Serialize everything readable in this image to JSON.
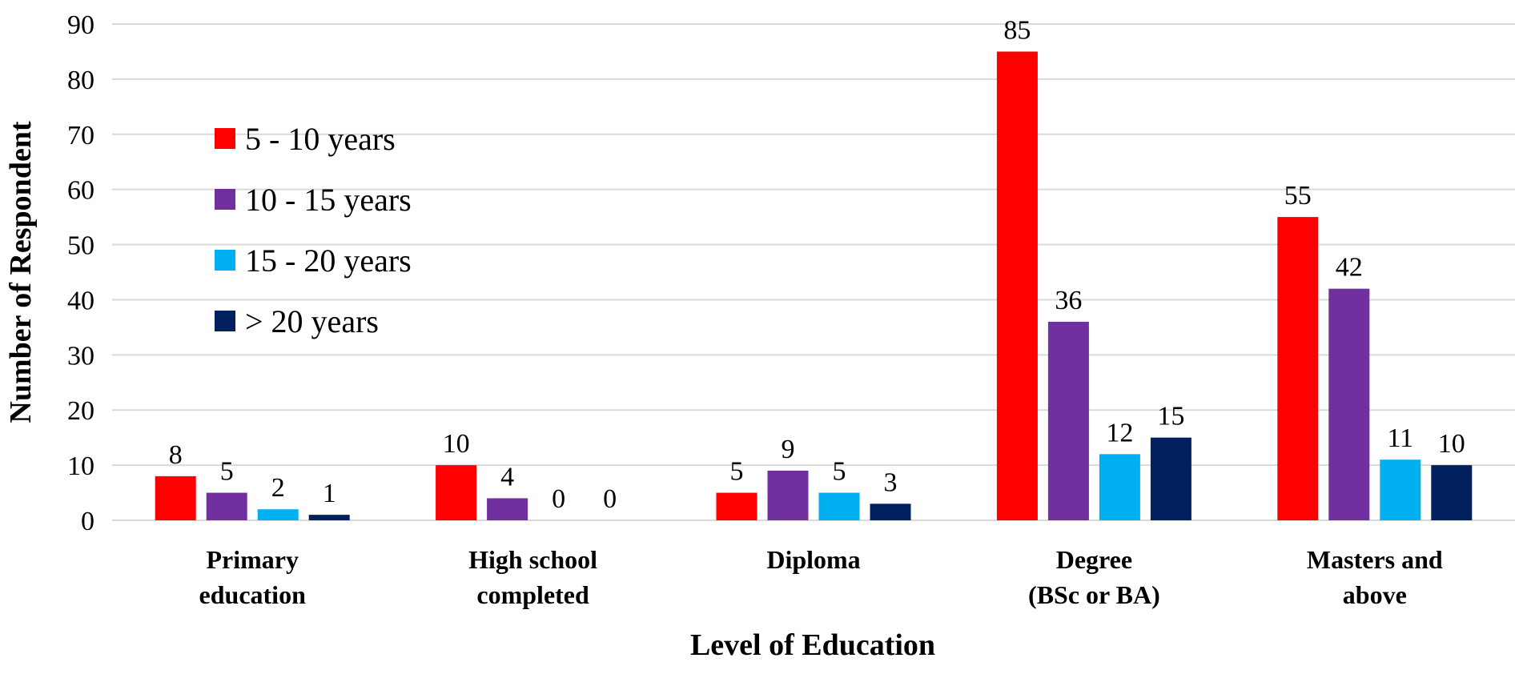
{
  "chart_data": {
    "type": "bar",
    "title": "",
    "xlabel": "Level of Education",
    "ylabel": "Number of Respondent",
    "ylim": [
      0,
      90
    ],
    "yticks": [
      0,
      10,
      20,
      30,
      40,
      50,
      60,
      70,
      80,
      90
    ],
    "grid": true,
    "legend_position": "top-left",
    "categories": [
      [
        "Primary",
        "education"
      ],
      [
        "High school",
        "completed"
      ],
      [
        "Diploma"
      ],
      [
        "Degree",
        "(BSc or BA)"
      ],
      [
        "Masters and",
        "above"
      ]
    ],
    "series": [
      {
        "name": "5 - 10 years",
        "color": "#ff0000",
        "values": [
          8,
          10,
          5,
          85,
          55
        ]
      },
      {
        "name": "10 - 15 years",
        "color": "#7030a0",
        "values": [
          5,
          4,
          9,
          36,
          42
        ]
      },
      {
        "name": "15 - 20 years",
        "color": "#00b0f0",
        "values": [
          2,
          0,
          5,
          12,
          11
        ]
      },
      {
        "name": "> 20 years",
        "color": "#002060",
        "values": [
          1,
          0,
          3,
          15,
          10
        ]
      }
    ]
  }
}
